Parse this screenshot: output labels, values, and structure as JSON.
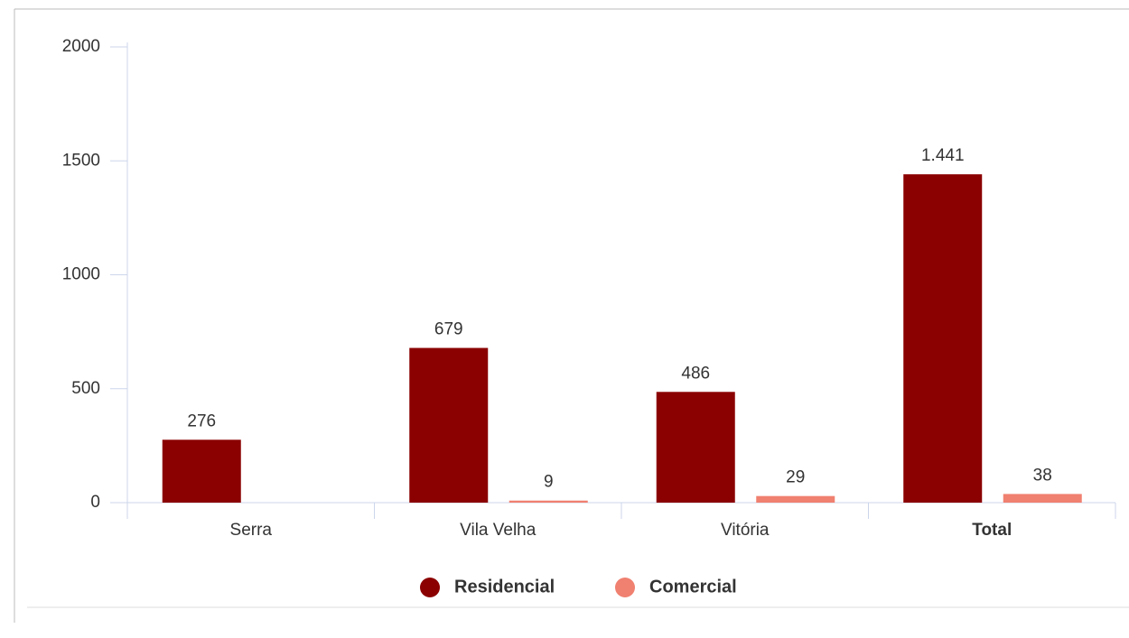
{
  "chart_data": {
    "type": "bar",
    "categories": [
      "Serra",
      "Vila Velha",
      "Vitória",
      "Total"
    ],
    "series": [
      {
        "name": "Residencial",
        "color": "#8b0000",
        "values": [
          276,
          679,
          486,
          1441
        ],
        "value_labels": [
          "276",
          "679",
          "486",
          "1.441"
        ]
      },
      {
        "name": "Comercial",
        "color": "#f08070",
        "values": [
          null,
          9,
          29,
          38
        ],
        "value_labels": [
          null,
          "9",
          "29",
          "38"
        ]
      }
    ],
    "ylim": [
      0,
      2000
    ],
    "yticks": [
      0,
      500,
      1000,
      1500,
      2000
    ]
  }
}
